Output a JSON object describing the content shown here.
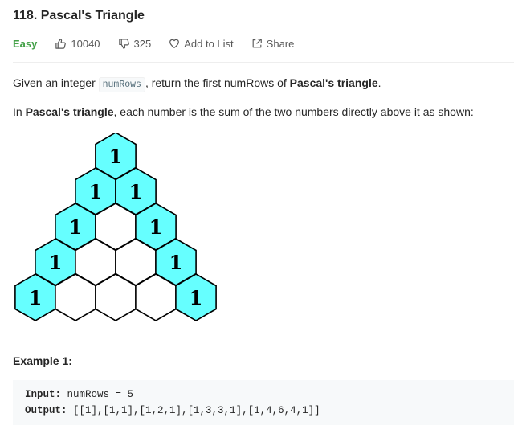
{
  "problem": {
    "title": "118. Pascal's Triangle",
    "difficulty": "Easy",
    "likes": "10040",
    "dislikes": "325",
    "add_to_list": "Add to List",
    "share": "Share"
  },
  "description": {
    "p1_prefix": "Given an integer ",
    "p1_code": "numRows",
    "p1_middle": ", return the first numRows of ",
    "p1_bold": "Pascal's triangle",
    "p1_suffix": ".",
    "p2_prefix": "In ",
    "p2_bold": "Pascal's triangle",
    "p2_suffix": ", each number is the sum of the two numbers directly above it as shown:"
  },
  "diagram": {
    "filled_color": "#66ffff",
    "rows": [
      [
        "1"
      ],
      [
        "1",
        "1"
      ],
      [
        "1",
        "",
        "1"
      ],
      [
        "1",
        "",
        "",
        "1"
      ],
      [
        "1",
        "",
        "",
        "",
        "1"
      ]
    ]
  },
  "example": {
    "title": "Example 1:",
    "input_label": "Input:",
    "input_value": "numRows = 5",
    "output_label": "Output:",
    "output_value": "[[1],[1,1],[1,2,1],[1,3,3,1],[1,4,6,4,1]]"
  }
}
